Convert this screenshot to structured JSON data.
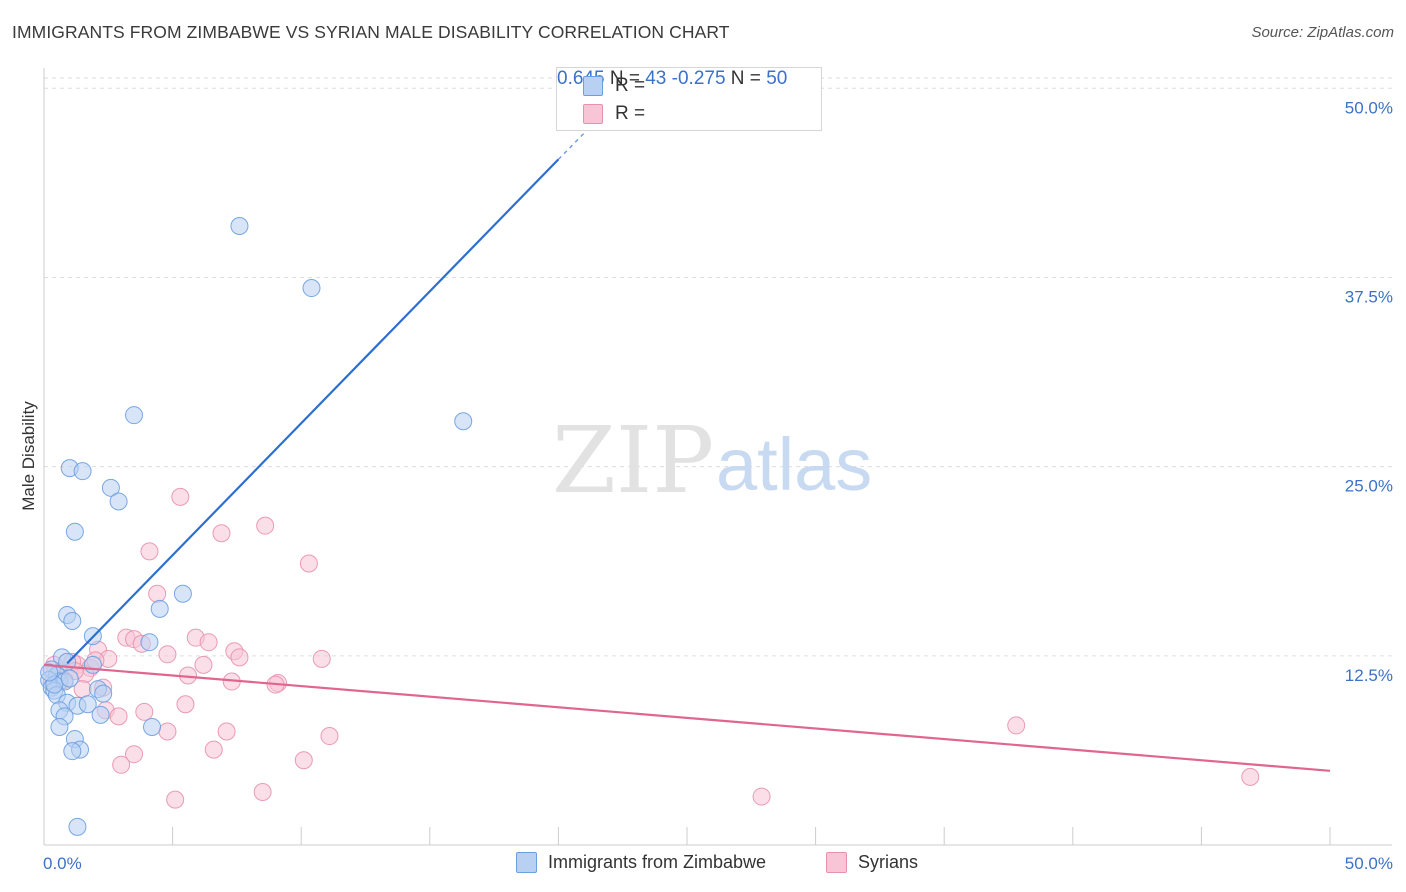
{
  "title": "IMMIGRANTS FROM ZIMBABWE VS SYRIAN MALE DISABILITY CORRELATION CHART",
  "source": "Source: ZipAtlas.com",
  "watermark": {
    "zip": "ZIP",
    "atlas": "atlas"
  },
  "colors": {
    "blue": "#6a9fe0",
    "blue_fill": "#b8d0f2",
    "blue_line": "#2c6fd1",
    "blue_text": "#3a72c9",
    "pink": "#e891ad",
    "pink_fill": "#f7c5d5",
    "pink_line": "#e0668f",
    "grid": "#dddddd",
    "axis": "#cccccc"
  },
  "legend": {
    "series1": {
      "r_label": "R =",
      "r_value": "0.645",
      "n_label": "N =",
      "n_value": "43"
    },
    "series2": {
      "r_label": "R =",
      "r_value": "-0.275",
      "n_label": "N =",
      "n_value": "50"
    }
  },
  "chart_data": {
    "type": "scatter",
    "title": "IMMIGRANTS FROM ZIMBABWE VS SYRIAN MALE DISABILITY CORRELATION CHART",
    "xlabel": "",
    "ylabel": "Male Disability",
    "xlim": [
      0,
      50
    ],
    "ylim": [
      0,
      52
    ],
    "x_tick_labels": [
      "0.0%",
      "50.0%"
    ],
    "y_ticks": [
      12.5,
      25.0,
      37.5,
      50.0
    ],
    "y_tick_labels": [
      "12.5%",
      "25.0%",
      "37.5%",
      "50.0%"
    ],
    "grid": true,
    "series": [
      {
        "name": "Immigrants from Zimbabwe",
        "color": "#6a9fe0",
        "points": [
          [
            7.6,
            40.9
          ],
          [
            10.4,
            36.8
          ],
          [
            3.5,
            28.4
          ],
          [
            16.3,
            28.0
          ],
          [
            1.0,
            24.9
          ],
          [
            1.5,
            24.7
          ],
          [
            2.6,
            23.6
          ],
          [
            2.9,
            22.7
          ],
          [
            1.2,
            20.7
          ],
          [
            5.4,
            16.6
          ],
          [
            4.5,
            15.6
          ],
          [
            0.9,
            15.2
          ],
          [
            1.1,
            14.8
          ],
          [
            1.9,
            13.8
          ],
          [
            4.1,
            13.4
          ],
          [
            0.7,
            12.4
          ],
          [
            1.9,
            11.9
          ],
          [
            0.9,
            12.1
          ],
          [
            0.3,
            11.6
          ],
          [
            0.5,
            11.2
          ],
          [
            0.6,
            10.8
          ],
          [
            0.2,
            10.9
          ],
          [
            0.3,
            10.4
          ],
          [
            0.8,
            10.8
          ],
          [
            0.4,
            10.2
          ],
          [
            0.5,
            9.9
          ],
          [
            2.1,
            10.3
          ],
          [
            2.3,
            10.0
          ],
          [
            0.9,
            9.4
          ],
          [
            1.3,
            9.2
          ],
          [
            1.7,
            9.3
          ],
          [
            0.6,
            8.9
          ],
          [
            0.8,
            8.5
          ],
          [
            2.2,
            8.6
          ],
          [
            0.6,
            7.8
          ],
          [
            4.2,
            7.8
          ],
          [
            1.2,
            7.0
          ],
          [
            1.4,
            6.3
          ],
          [
            1.1,
            6.2
          ],
          [
            1.3,
            1.2
          ],
          [
            0.4,
            10.6
          ],
          [
            1.0,
            11.0
          ],
          [
            0.2,
            11.4
          ]
        ]
      },
      {
        "name": "Syrians",
        "color": "#e891ad",
        "points": [
          [
            5.3,
            23.0
          ],
          [
            8.6,
            21.1
          ],
          [
            6.9,
            20.6
          ],
          [
            4.1,
            19.4
          ],
          [
            10.3,
            18.6
          ],
          [
            4.4,
            16.6
          ],
          [
            5.9,
            13.7
          ],
          [
            3.2,
            13.7
          ],
          [
            3.5,
            13.6
          ],
          [
            6.4,
            13.4
          ],
          [
            3.8,
            13.3
          ],
          [
            2.1,
            12.9
          ],
          [
            7.4,
            12.8
          ],
          [
            4.8,
            12.6
          ],
          [
            2.5,
            12.3
          ],
          [
            7.6,
            12.4
          ],
          [
            10.8,
            12.3
          ],
          [
            1.3,
            11.9
          ],
          [
            6.2,
            11.9
          ],
          [
            0.4,
            11.9
          ],
          [
            1.8,
            11.7
          ],
          [
            1.1,
            12.1
          ],
          [
            5.6,
            11.2
          ],
          [
            0.6,
            11.4
          ],
          [
            9.1,
            10.7
          ],
          [
            7.3,
            10.8
          ],
          [
            9.0,
            10.6
          ],
          [
            0.3,
            10.7
          ],
          [
            0.8,
            10.9
          ],
          [
            1.6,
            11.3
          ],
          [
            1.5,
            10.3
          ],
          [
            2.3,
            10.4
          ],
          [
            5.5,
            9.3
          ],
          [
            2.4,
            8.9
          ],
          [
            3.9,
            8.8
          ],
          [
            2.9,
            8.5
          ],
          [
            4.8,
            7.5
          ],
          [
            7.1,
            7.5
          ],
          [
            11.1,
            7.2
          ],
          [
            6.6,
            6.3
          ],
          [
            3.5,
            6.0
          ],
          [
            10.1,
            5.6
          ],
          [
            3.0,
            5.3
          ],
          [
            37.8,
            7.9
          ],
          [
            8.5,
            3.5
          ],
          [
            5.1,
            3.0
          ],
          [
            27.9,
            3.2
          ],
          [
            46.9,
            4.5
          ],
          [
            2.0,
            12.2
          ],
          [
            1.2,
            11.5
          ]
        ]
      }
    ],
    "trend_lines": [
      {
        "series": "Immigrants from Zimbabwe",
        "x": [
          0.9,
          20.0
        ],
        "y": [
          12.0,
          45.3
        ],
        "dashed_extension_to": [
          21.5,
          47.9
        ]
      },
      {
        "series": "Syrians",
        "x": [
          0,
          50
        ],
        "y": [
          11.9,
          4.9
        ]
      }
    ]
  }
}
